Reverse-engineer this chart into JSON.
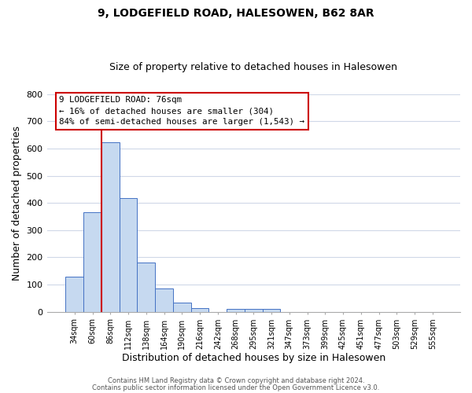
{
  "title": "9, LODGEFIELD ROAD, HALESOWEN, B62 8AR",
  "subtitle": "Size of property relative to detached houses in Halesowen",
  "xlabel": "Distribution of detached houses by size in Halesowen",
  "ylabel": "Number of detached properties",
  "footer_line1": "Contains HM Land Registry data © Crown copyright and database right 2024.",
  "footer_line2": "Contains public sector information licensed under the Open Government Licence v3.0.",
  "bar_labels": [
    "34sqm",
    "60sqm",
    "86sqm",
    "112sqm",
    "138sqm",
    "164sqm",
    "190sqm",
    "216sqm",
    "242sqm",
    "268sqm",
    "295sqm",
    "321sqm",
    "347sqm",
    "373sqm",
    "399sqm",
    "425sqm",
    "451sqm",
    "477sqm",
    "503sqm",
    "529sqm",
    "555sqm"
  ],
  "bar_values": [
    130,
    365,
    622,
    417,
    180,
    85,
    35,
    14,
    0,
    10,
    10,
    10,
    0,
    0,
    0,
    0,
    0,
    0,
    0,
    0,
    0
  ],
  "bar_color": "#c6d9f0",
  "bar_edge_color": "#4472c4",
  "vline_color": "#cc0000",
  "annotation_title": "9 LODGEFIELD ROAD: 76sqm",
  "annotation_line1": "← 16% of detached houses are smaller (304)",
  "annotation_line2": "84% of semi-detached houses are larger (1,543) →",
  "ylim": [
    0,
    800
  ],
  "yticks": [
    0,
    100,
    200,
    300,
    400,
    500,
    600,
    700,
    800
  ],
  "background_color": "#ffffff",
  "grid_color": "#d0d8e8"
}
